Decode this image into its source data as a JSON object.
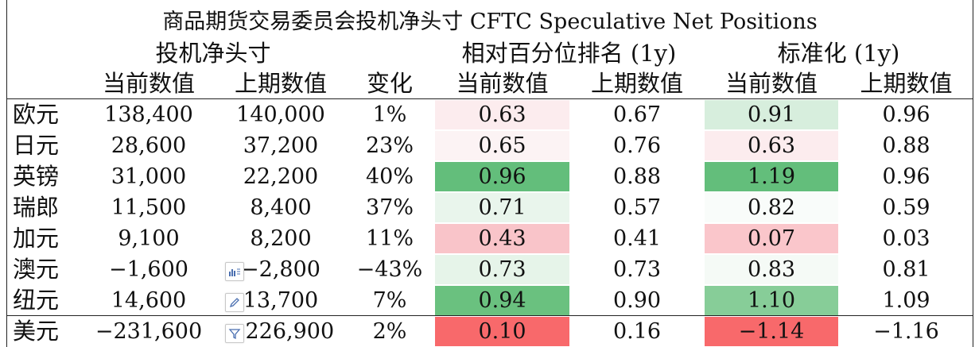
{
  "table": {
    "title": "商品期货交易委员会投机净头寸 CFTC Speculative Net Positions",
    "group_headers": [
      "投机净头寸",
      "相对百分位排名 (1y)",
      "标准化 (1y)"
    ],
    "column_headers": [
      "当前数值",
      "上期数值",
      "变化",
      "当前数值",
      "上期数值",
      "当前数值",
      "上期数值"
    ],
    "rows": [
      {
        "name": "欧元",
        "cur": "138,400",
        "prev": "140,000",
        "chg": "1%",
        "pct_cur": "0.63",
        "pct_prev": "0.67",
        "std_cur": "0.91",
        "std_prev": "0.96"
      },
      {
        "name": "日元",
        "cur": "28,600",
        "prev": "37,200",
        "chg": "23%",
        "pct_cur": "0.65",
        "pct_prev": "0.76",
        "std_cur": "0.63",
        "std_prev": "0.88"
      },
      {
        "name": "英镑",
        "cur": "31,000",
        "prev": "22,200",
        "chg": "40%",
        "pct_cur": "0.96",
        "pct_prev": "0.88",
        "std_cur": "1.19",
        "std_prev": "0.96"
      },
      {
        "name": "瑞郎",
        "cur": "11,500",
        "prev": "8,400",
        "chg": "37%",
        "pct_cur": "0.71",
        "pct_prev": "0.57",
        "std_cur": "0.82",
        "std_prev": "0.59"
      },
      {
        "name": "加元",
        "cur": "9,100",
        "prev": "8,200",
        "chg": "11%",
        "pct_cur": "0.43",
        "pct_prev": "0.41",
        "std_cur": "0.07",
        "std_prev": "0.03"
      },
      {
        "name": "澳元",
        "cur": "−1,600",
        "prev": "−2,800",
        "chg": "−43%",
        "pct_cur": "0.73",
        "pct_prev": "0.73",
        "std_cur": "0.83",
        "std_prev": "0.81"
      },
      {
        "name": "纽元",
        "cur": "14,600",
        "prev": "13,700",
        "chg": "7%",
        "pct_cur": "0.94",
        "pct_prev": "0.90",
        "std_cur": "1.10",
        "std_prev": "1.09"
      },
      {
        "name": "美元",
        "cur": "−231,600",
        "prev": "−226,900",
        "chg": "2%",
        "pct_cur": "0.10",
        "pct_prev": "0.16",
        "std_cur": "−1.14",
        "std_prev": "−1.16"
      }
    ],
    "heat_colors": {
      "pct_cur": [
        "#fcecee",
        "#fcf3f4",
        "#63be7b",
        "#e9f5ec",
        "#f9c4c9",
        "#e6f4e9",
        "#6ac17f",
        "#f8696b"
      ],
      "std_cur": [
        "#d7eedd",
        "#fcecee",
        "#63be7b",
        "#f9fcfa",
        "#fac6cb",
        "#f5faf6",
        "#87cd98",
        "#f8696b"
      ]
    }
  },
  "floating_toolbar": {
    "icons": [
      "chart-icon",
      "pencil-icon",
      "filter-icon"
    ]
  }
}
